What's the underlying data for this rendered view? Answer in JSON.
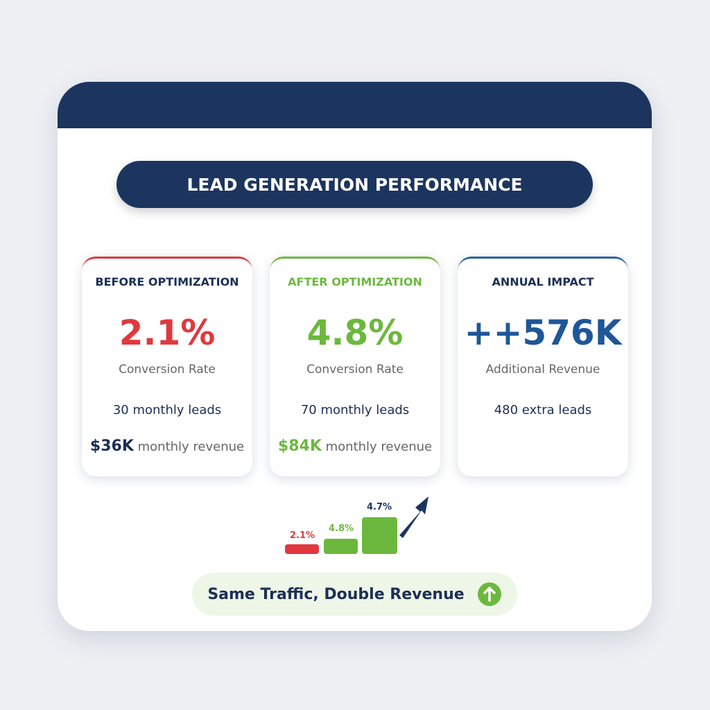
{
  "header": {
    "title": "LEAD GENERATION PERFORMANCE"
  },
  "cards": [
    {
      "heading": "BEFORE OPTIMIZATION",
      "value": "2.1%",
      "caption": "Conversion Rate",
      "leads": "30 monthly leads",
      "revenue_value": "$36K",
      "revenue_label": "monthly revenue"
    },
    {
      "heading": "AFTER OPTIMIZATION",
      "value": "4.8%",
      "caption": "Conversion Rate",
      "leads": "70 monthly leads",
      "revenue_value": "$84K",
      "revenue_label": "monthly revenue"
    },
    {
      "heading": "ANNUAL IMPACT",
      "value": "++576K",
      "caption": "Additional Revenue",
      "leads": "480 extra leads"
    }
  ],
  "mini_chart": {
    "labels": [
      "2.1%",
      "4.8%",
      "4.7%"
    ]
  },
  "footer": {
    "text": "Same Traffic, Double Revenue"
  }
}
